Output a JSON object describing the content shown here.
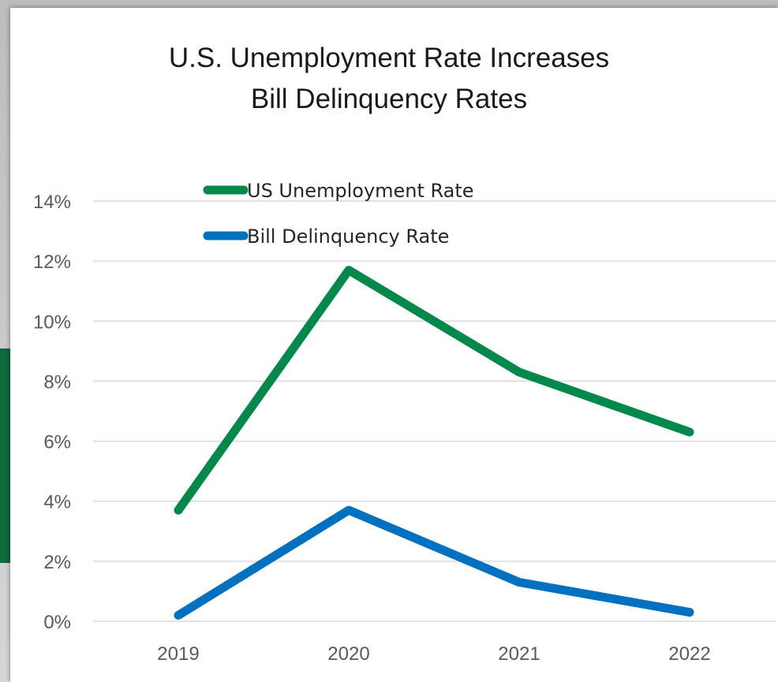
{
  "chart_data": {
    "type": "line",
    "title_line1": "U.S. Unemployment Rate Increases",
    "title_line2": "Bill Delinquency Rates",
    "categories": [
      "2019",
      "2020",
      "2021",
      "2022"
    ],
    "series": [
      {
        "name": "US Unemployment Rate",
        "values": [
          3.7,
          11.7,
          8.3,
          6.3
        ],
        "color": "#00894b"
      },
      {
        "name": "Bill Delinquency Rate",
        "values": [
          0.2,
          3.7,
          1.3,
          0.3
        ],
        "color": "#0070c0"
      }
    ],
    "ylim": [
      0,
      14
    ],
    "yticks": [
      0,
      2,
      4,
      6,
      8,
      10,
      12,
      14
    ],
    "ytick_labels": [
      "0%",
      "2%",
      "4%",
      "6%",
      "8%",
      "10%",
      "12%",
      "14%"
    ],
    "grid": true,
    "legend_position": "top-left"
  }
}
